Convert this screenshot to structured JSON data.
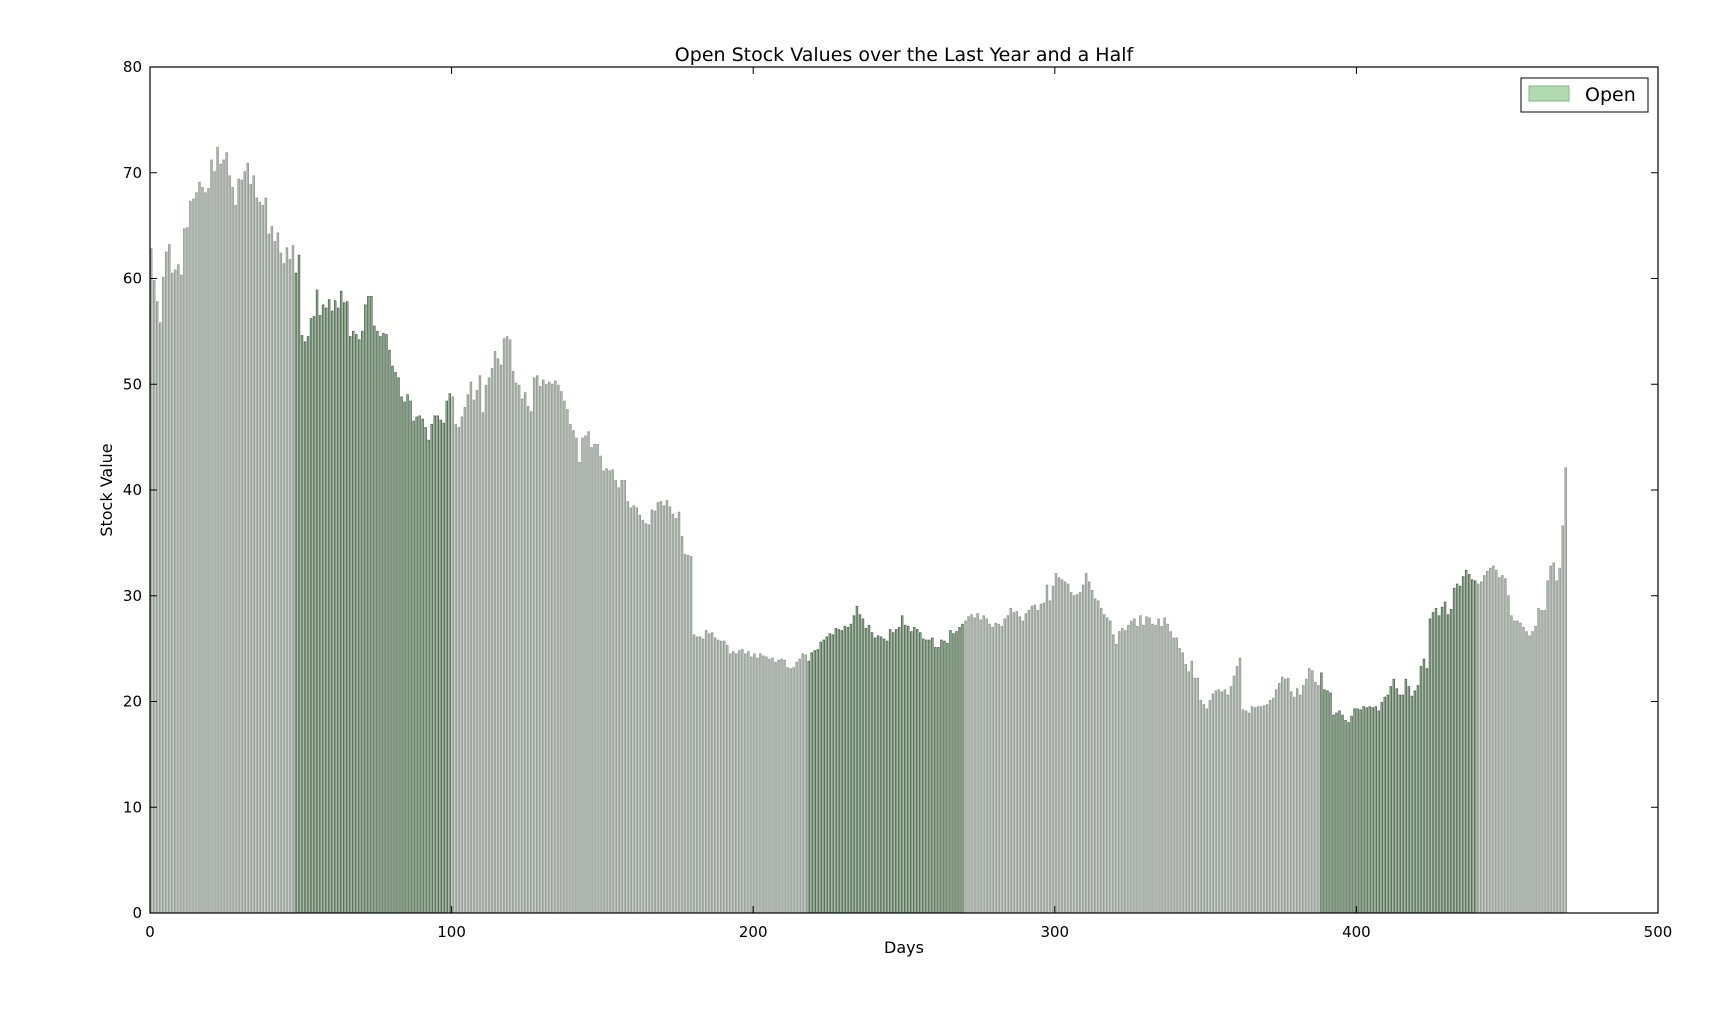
{
  "chart_data": {
    "type": "bar",
    "title": "Open Stock Values over the Last Year and a Half",
    "xlabel": "Days",
    "ylabel": "Stock Value",
    "xlim": [
      0,
      500
    ],
    "ylim": [
      0,
      80
    ],
    "xticks": [
      0,
      100,
      200,
      300,
      400,
      500
    ],
    "yticks": [
      0,
      10,
      20,
      30,
      40,
      50,
      60,
      70,
      80
    ],
    "grid": false,
    "legend": {
      "position": "top-right",
      "entries": [
        {
          "label": "Open",
          "color": "#b2dbb2"
        }
      ]
    },
    "colors": {
      "bar_face": "#b2dbb2",
      "bar_edge": "#9a9a9a",
      "bar_edge_dark": "#5a6e5a",
      "axis": "#000000"
    },
    "highlighted_ranges": [
      [
        48,
        100
      ],
      [
        218,
        270
      ],
      [
        388,
        440
      ]
    ],
    "series": [
      {
        "name": "Open",
        "x_start": 0,
        "values": [
          62.8,
          59.8,
          57.8,
          55.8,
          60.1,
          62.5,
          63.2,
          60.5,
          60.8,
          61.3,
          60.3,
          64.7,
          64.8,
          67.3,
          67.5,
          68.1,
          69.1,
          68.6,
          68.1,
          68.5,
          71.2,
          70.1,
          72.4,
          70.8,
          71.2,
          71.9,
          69.7,
          68.6,
          66.9,
          69.4,
          69.3,
          70.1,
          70.9,
          68.9,
          69.7,
          67.6,
          67.2,
          66.9,
          67.6,
          64.2,
          64.9,
          63.5,
          64.3,
          62.4,
          61.4,
          62.9,
          61.8,
          63.1,
          60.5,
          62.2,
          54.6,
          54.0,
          54.5,
          56.2,
          56.4,
          58.9,
          56.5,
          57.5,
          57.2,
          58.0,
          56.9,
          57.9,
          57.2,
          58.8,
          57.7,
          57.8,
          54.5,
          55.0,
          54.7,
          54.2,
          55.0,
          57.5,
          58.3,
          58.3,
          55.5,
          55.0,
          54.5,
          54.8,
          54.7,
          53.2,
          51.7,
          51.1,
          50.6,
          48.8,
          48.3,
          49.0,
          48.4,
          46.5,
          46.9,
          47.0,
          46.7,
          45.9,
          44.7,
          46.2,
          47.0,
          47.0,
          46.6,
          46.3,
          48.4,
          49.1,
          48.8,
          46.2,
          45.9,
          46.9,
          47.8,
          49.0,
          50.2,
          48.5,
          49.4,
          50.8,
          47.3,
          49.9,
          50.6,
          51.5,
          53.1,
          52.4,
          51.8,
          54.3,
          54.5,
          54.2,
          51.2,
          50.1,
          49.9,
          48.6,
          49.2,
          47.9,
          47.4,
          50.6,
          50.8,
          49.8,
          50.4,
          50.0,
          50.2,
          50.0,
          50.3,
          49.9,
          49.3,
          48.4,
          47.6,
          46.2,
          45.6,
          44.9,
          42.6,
          44.9,
          45.1,
          45.5,
          44.0,
          44.3,
          44.3,
          43.2,
          41.8,
          42.0,
          41.8,
          41.9,
          40.9,
          40.2,
          40.9,
          40.9,
          38.9,
          38.3,
          38.5,
          38.3,
          37.6,
          37.1,
          36.8,
          36.7,
          38.1,
          38.0,
          38.8,
          38.9,
          38.5,
          39.0,
          38.4,
          37.7,
          37.3,
          37.9,
          35.6,
          33.9,
          33.8,
          33.7,
          26.3,
          26.1,
          26.1,
          25.9,
          26.7,
          26.4,
          26.5,
          26.0,
          25.8,
          25.7,
          25.7,
          25.3,
          24.5,
          24.7,
          24.5,
          24.8,
          24.9,
          24.5,
          24.7,
          24.2,
          24.5,
          24.1,
          24.5,
          24.3,
          24.2,
          24.0,
          24.1,
          23.7,
          23.9,
          24.0,
          23.9,
          23.2,
          23.1,
          23.2,
          23.7,
          24.0,
          24.5,
          24.4,
          23.8,
          24.6,
          24.8,
          24.9,
          25.6,
          25.8,
          26.1,
          26.4,
          26.3,
          26.9,
          26.8,
          26.7,
          27.1,
          27.0,
          27.3,
          28.1,
          29.0,
          28.2,
          27.8,
          26.9,
          27.2,
          26.5,
          26.0,
          26.2,
          26.1,
          25.9,
          25.7,
          26.8,
          26.5,
          26.8,
          27.0,
          28.1,
          27.2,
          27.1,
          26.6,
          27.0,
          26.8,
          26.5,
          25.9,
          25.8,
          25.8,
          26.0,
          25.1,
          25.1,
          25.8,
          25.7,
          25.5,
          26.7,
          26.4,
          26.6,
          27.0,
          27.3,
          27.6,
          28.0,
          28.2,
          27.9,
          28.3,
          27.7,
          28.1,
          27.8,
          27.3,
          27.0,
          27.4,
          27.3,
          27.1,
          27.8,
          28.1,
          28.8,
          28.4,
          28.5,
          28.0,
          27.6,
          28.3,
          28.6,
          29.0,
          29.1,
          28.6,
          29.2,
          29.3,
          31.0,
          29.5,
          30.9,
          32.1,
          31.7,
          31.5,
          31.3,
          31.1,
          30.3,
          30.0,
          30.1,
          30.3,
          31.0,
          32.1,
          31.3,
          30.5,
          29.7,
          29.5,
          28.8,
          28.2,
          27.9,
          27.6,
          26.3,
          25.4,
          26.6,
          26.9,
          26.7,
          27.2,
          27.6,
          27.8,
          27.1,
          28.1,
          27.2,
          28.0,
          27.9,
          27.3,
          27.2,
          27.8,
          27.1,
          27.9,
          27.3,
          26.6,
          26.0,
          26.0,
          25.0,
          24.6,
          23.5,
          22.8,
          23.8,
          22.2,
          22.2,
          20.1,
          19.7,
          19.3,
          20.1,
          20.7,
          21.0,
          21.1,
          20.9,
          21.1,
          20.6,
          21.4,
          22.4,
          23.3,
          24.1,
          19.2,
          19.1,
          18.9,
          19.5,
          19.4,
          19.5,
          19.5,
          19.6,
          19.7,
          20.1,
          20.3,
          21.1,
          21.7,
          22.3,
          22.1,
          22.2,
          20.9,
          20.4,
          21.2,
          20.6,
          21.5,
          22.1,
          23.1,
          22.9,
          21.8,
          21.5,
          22.7,
          21.1,
          21.0,
          20.8,
          18.7,
          18.9,
          19.1,
          18.7,
          18.2,
          18.0,
          18.6,
          19.3,
          19.3,
          19.2,
          19.5,
          19.4,
          19.5,
          19.4,
          19.5,
          19.1,
          19.9,
          20.4,
          20.6,
          21.4,
          22.1,
          21.2,
          20.6,
          20.6,
          22.1,
          21.4,
          20.5,
          21.0,
          21.5,
          23.3,
          24.0,
          23.1,
          27.8,
          28.4,
          28.8,
          28.1,
          28.9,
          29.4,
          28.2,
          28.7,
          30.7,
          31.1,
          30.9,
          31.8,
          32.4,
          32.0,
          31.5,
          31.4,
          31.1,
          31.3,
          31.9,
          32.3,
          32.6,
          32.8,
          32.4,
          31.7,
          31.9,
          31.6,
          30.0,
          28.1,
          27.6,
          27.6,
          27.4,
          27.0,
          26.6,
          26.2,
          26.6,
          27.1,
          28.8,
          28.6,
          28.6,
          31.4,
          32.8,
          33.1,
          31.4,
          32.6,
          36.6,
          42.1
        ]
      }
    ]
  }
}
